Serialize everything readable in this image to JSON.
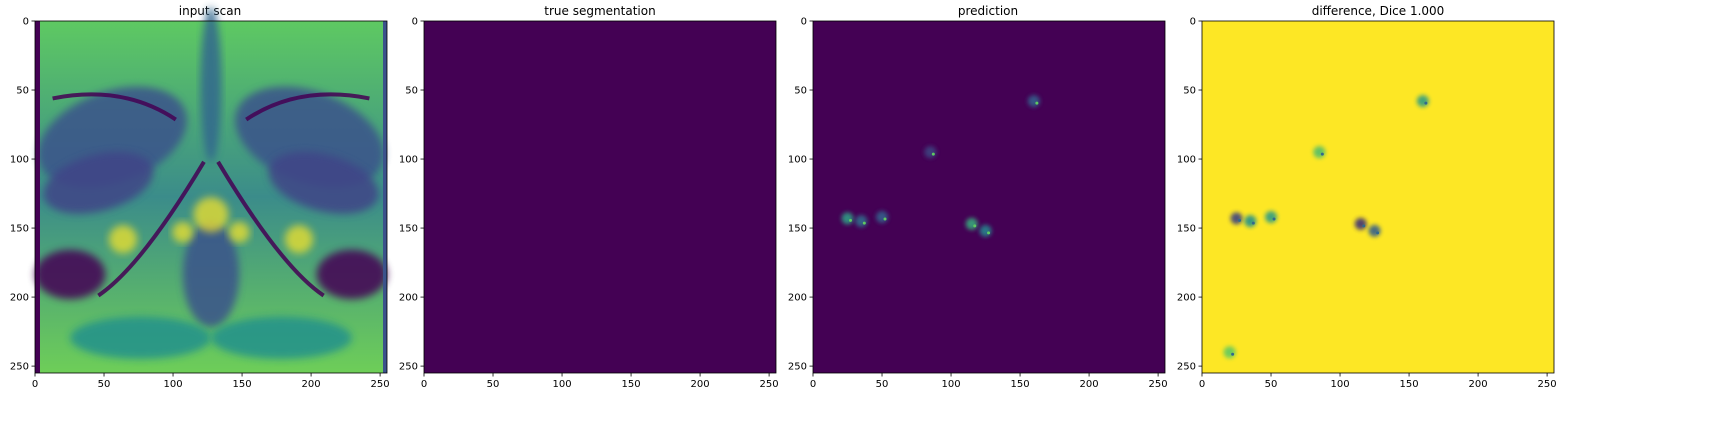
{
  "figure": {
    "background": "#ffffff"
  },
  "chart_data": [
    {
      "type": "heatmap",
      "title": "input scan",
      "content": "MRI slice",
      "colormap": "viridis",
      "xlim": [
        0,
        255
      ],
      "ylim": [
        255,
        0
      ],
      "xticks": [
        0,
        50,
        100,
        150,
        200,
        250
      ],
      "yticks": [
        0,
        50,
        100,
        150,
        200,
        250
      ],
      "grid": false
    },
    {
      "type": "heatmap",
      "title": "true segmentation",
      "content": "uniform zero mask",
      "colormap": "viridis",
      "fill_color": "#440154",
      "xlim": [
        0,
        255
      ],
      "ylim": [
        255,
        0
      ],
      "xticks": [
        0,
        50,
        100,
        150,
        200,
        250
      ],
      "yticks": [
        0,
        50,
        100,
        150,
        200,
        250
      ],
      "grid": false
    },
    {
      "type": "heatmap",
      "title": "prediction",
      "content": "mostly zero with faint speckles",
      "colormap": "viridis",
      "fill_color": "#440154",
      "hotspots": [
        {
          "x": 25,
          "y": 143,
          "intensity": 0.55
        },
        {
          "x": 35,
          "y": 145,
          "intensity": 0.35
        },
        {
          "x": 50,
          "y": 142,
          "intensity": 0.3
        },
        {
          "x": 115,
          "y": 147,
          "intensity": 0.6
        },
        {
          "x": 125,
          "y": 152,
          "intensity": 0.45
        },
        {
          "x": 160,
          "y": 58,
          "intensity": 0.3
        },
        {
          "x": 85,
          "y": 95,
          "intensity": 0.2
        }
      ],
      "xlim": [
        0,
        255
      ],
      "ylim": [
        255,
        0
      ],
      "xticks": [
        0,
        50,
        100,
        150,
        200,
        250
      ],
      "yticks": [
        0,
        50,
        100,
        150,
        200,
        250
      ],
      "grid": false
    },
    {
      "type": "heatmap",
      "title": "difference, Dice 1.000",
      "content": "mostly one with faint speckles",
      "colormap": "viridis",
      "fill_color": "#fde725",
      "hotspots": [
        {
          "x": 25,
          "y": 143,
          "intensity": 0.8
        },
        {
          "x": 35,
          "y": 145,
          "intensity": 0.5
        },
        {
          "x": 50,
          "y": 142,
          "intensity": 0.45
        },
        {
          "x": 115,
          "y": 147,
          "intensity": 0.85
        },
        {
          "x": 125,
          "y": 152,
          "intensity": 0.7
        },
        {
          "x": 160,
          "y": 58,
          "intensity": 0.45
        },
        {
          "x": 85,
          "y": 95,
          "intensity": 0.3
        },
        {
          "x": 20,
          "y": 240,
          "intensity": 0.25
        }
      ],
      "xlim": [
        0,
        255
      ],
      "ylim": [
        255,
        0
      ],
      "xticks": [
        0,
        50,
        100,
        150,
        200,
        250
      ],
      "yticks": [
        0,
        50,
        100,
        150,
        200,
        250
      ],
      "grid": false
    }
  ]
}
